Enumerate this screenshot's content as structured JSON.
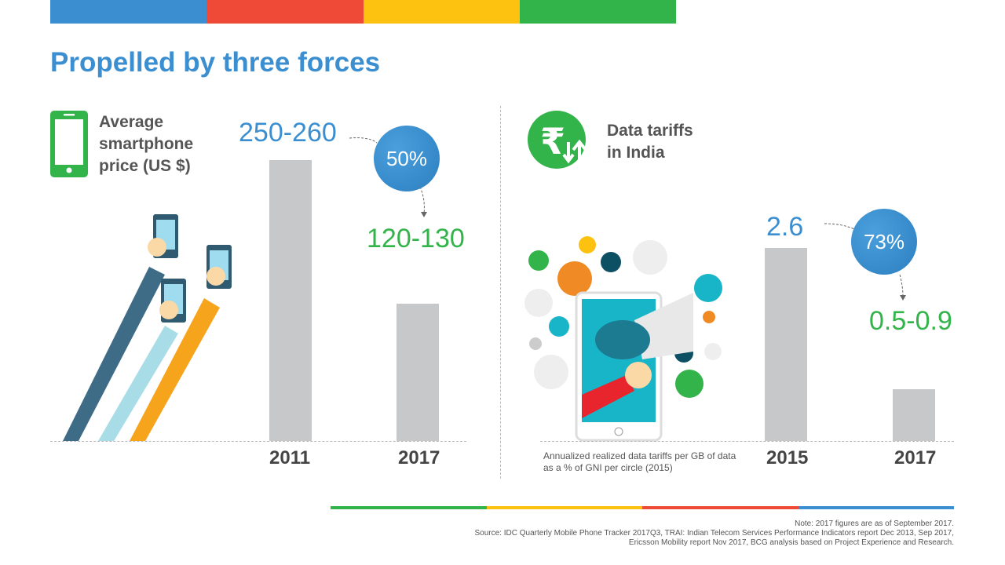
{
  "title": "Propelled by three forces",
  "colors": {
    "blue": "#3b8fd0",
    "red": "#ef4a38",
    "yellow": "#fdc10f",
    "green": "#33b44a",
    "bar": "#c7c8ca"
  },
  "chart_data": [
    {
      "type": "bar",
      "title": "Average smartphone price (US $)",
      "categories": [
        "2011",
        "2017"
      ],
      "values": [
        255,
        125
      ],
      "value_labels": [
        "250-260",
        "120-130"
      ],
      "change_label": "50%",
      "ylim": [
        0,
        260
      ]
    },
    {
      "type": "bar",
      "title": "Data tariffs in India",
      "categories": [
        "2015",
        "2017"
      ],
      "values": [
        2.6,
        0.7
      ],
      "value_labels": [
        "2.6",
        "0.5-0.9"
      ],
      "change_label": "73%",
      "caption": "Annualized realized data tariffs per GB of data as a % of GNI per circle (2015)",
      "ylim": [
        0,
        2.6
      ]
    }
  ],
  "left": {
    "label_lines": [
      "Average",
      "smartphone",
      "price (US $)"
    ],
    "icon": "smartphone-icon"
  },
  "right": {
    "label_lines": [
      "Data tariffs",
      "in India"
    ],
    "icon": "rupee-arrows-icon",
    "caption_lines": [
      "Annualized realized data tariffs per GB of data",
      "as a % of GNI per circle (2015)"
    ]
  },
  "footer": {
    "note": "Note: 2017 figures are as of September 2017.",
    "source_lines": [
      "Source: IDC Quarterly Mobile Phone Tracker 2017Q3, TRAI: Indian Telecom Services Performance Indicators report Dec 2013, Sep 2017,",
      "Ericsson Mobility report Nov 2017, BCG analysis based on Project Experience and Research."
    ]
  }
}
